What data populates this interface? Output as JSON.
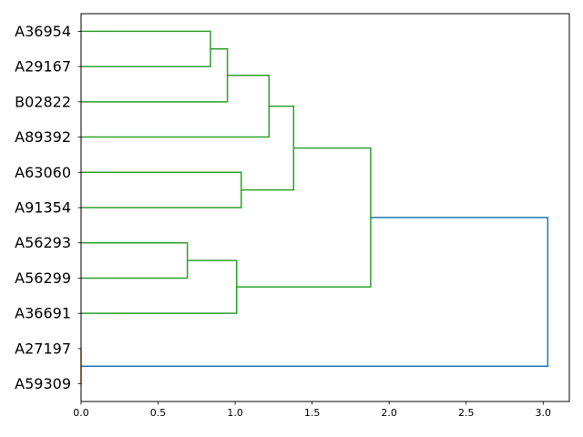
{
  "chart_data": {
    "type": "dendrogram",
    "orientation": "horizontal",
    "title": "",
    "xlabel": "",
    "ylabel": "",
    "xlim": [
      0,
      3.17
    ],
    "x_ticks": [
      0.0,
      0.5,
      1.0,
      1.5,
      2.0,
      2.5,
      3.0
    ],
    "x_tick_labels": [
      "0.0",
      "0.5",
      "1.0",
      "1.5",
      "2.0",
      "2.5",
      "3.0"
    ],
    "grid": false,
    "leaves": [
      "A36954",
      "A29167",
      "B02822",
      "A89392",
      "A63060",
      "A91354",
      "A56293",
      "A56299",
      "A36691",
      "A27197",
      "A59309"
    ],
    "colors": {
      "cluster_main": "#2ca02c",
      "cluster_small": "#ff7f0e",
      "root": "#1f77b4"
    },
    "merges": [
      {
        "left": "A36954",
        "right": "A29167",
        "height": 0.84,
        "color": "cluster_main"
      },
      {
        "left": "merge_1",
        "right": "B02822",
        "height": 0.95,
        "color": "cluster_main"
      },
      {
        "left": "merge_2",
        "right": "A89392",
        "height": 1.22,
        "color": "cluster_main"
      },
      {
        "left": "A63060",
        "right": "A91354",
        "height": 1.04,
        "color": "cluster_main"
      },
      {
        "left": "merge_3",
        "right": "merge_4",
        "height": 1.38,
        "color": "cluster_main"
      },
      {
        "left": "A56293",
        "right": "A56299",
        "height": 0.69,
        "color": "cluster_main"
      },
      {
        "left": "merge_6",
        "right": "A36691",
        "height": 1.01,
        "color": "cluster_main"
      },
      {
        "left": "merge_5",
        "right": "merge_7",
        "height": 1.88,
        "color": "cluster_main"
      },
      {
        "left": "A27197",
        "right": "A59309",
        "height": 0.0,
        "color": "cluster_small"
      },
      {
        "left": "merge_8",
        "right": "merge_9",
        "height": 3.03,
        "color": "root"
      }
    ]
  }
}
